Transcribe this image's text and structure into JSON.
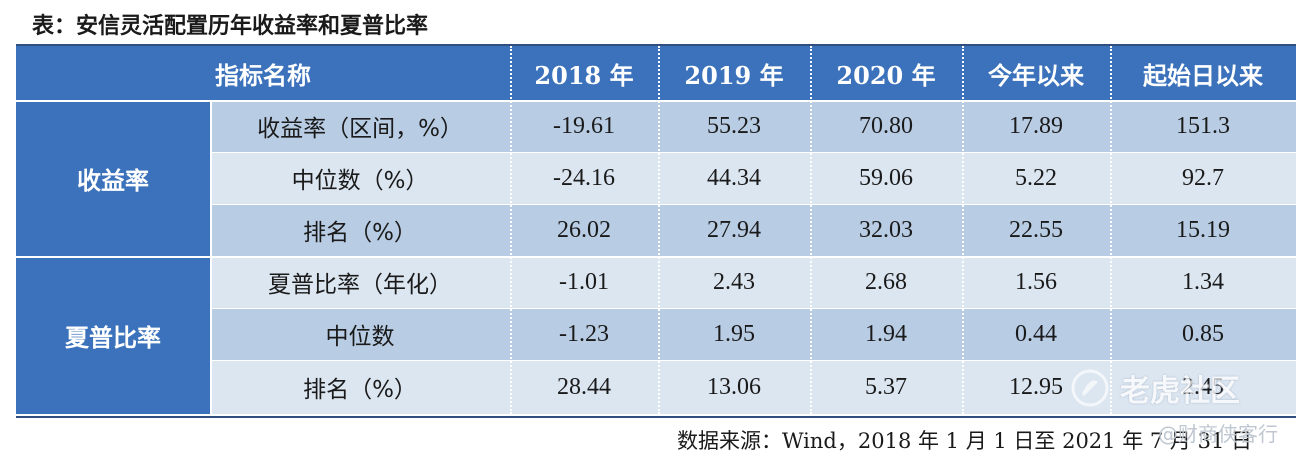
{
  "title": "表：安信灵活配置历年收益率和夏普比率",
  "table": {
    "header": [
      "指标名称",
      "2018 年",
      "2019 年",
      "2020 年",
      "今年以来",
      "起始日以来"
    ],
    "groups": [
      "收益率",
      "夏普比率"
    ],
    "rows": [
      {
        "label": "收益率（区间，%）",
        "values": [
          "-19.61",
          "55.23",
          "70.80",
          "17.89",
          "151.3"
        ]
      },
      {
        "label": "中位数（%）",
        "values": [
          "-24.16",
          "44.34",
          "59.06",
          "5.22",
          "92.7"
        ]
      },
      {
        "label": "排名（%）",
        "values": [
          "26.02",
          "27.94",
          "32.03",
          "22.55",
          "15.19"
        ]
      },
      {
        "label": "夏普比率（年化）",
        "values": [
          "-1.01",
          "2.43",
          "2.68",
          "1.56",
          "1.34"
        ]
      },
      {
        "label": "中位数",
        "values": [
          "-1.23",
          "1.95",
          "1.94",
          "0.44",
          "0.85"
        ]
      },
      {
        "label": "排名（%）",
        "values": [
          "28.44",
          "13.06",
          "5.37",
          "12.95",
          "2.45"
        ]
      }
    ]
  },
  "footer": "数据来源：Wind，2018 年 1 月 1 日至 2021 年 7 月 31 日",
  "watermark": {
    "text": "老虎社区",
    "sub": "@财商侠客行"
  },
  "colors": {
    "header_bg": "#3b72bb",
    "row_dark": "#b8cce4",
    "row_light": "#dce6f1"
  }
}
